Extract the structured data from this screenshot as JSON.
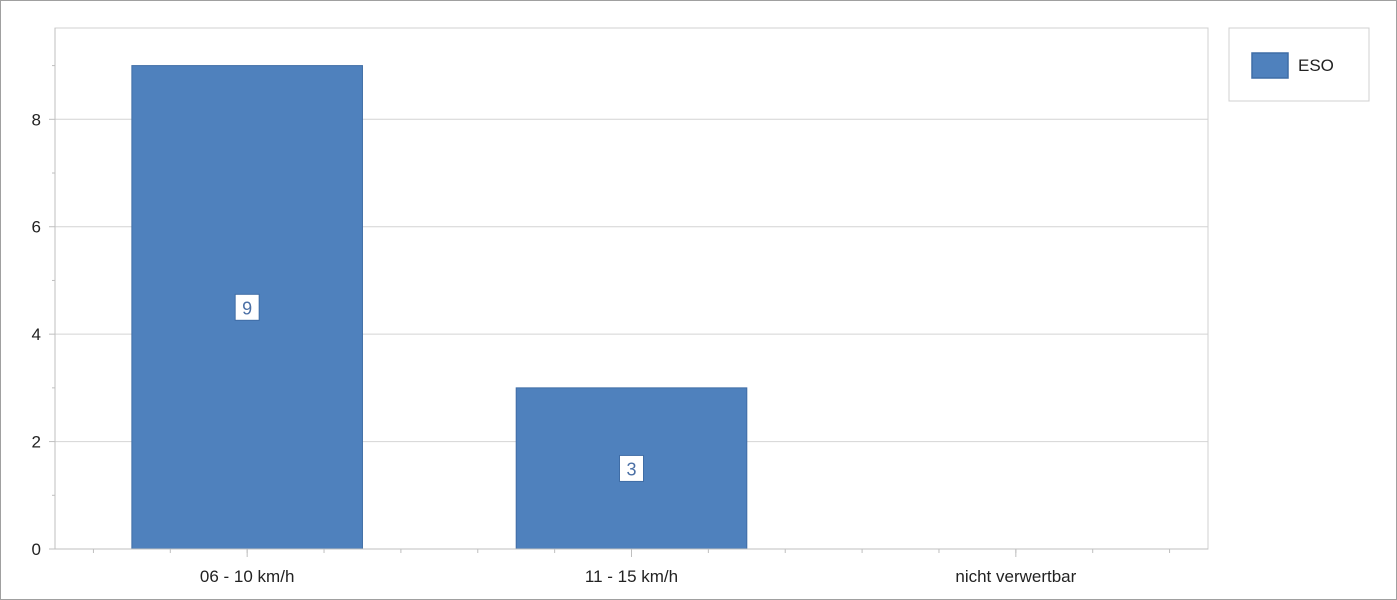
{
  "chart_data": {
    "type": "bar",
    "categories": [
      "06 - 10 km/h",
      "11 - 15 km/h",
      "nicht verwertbar"
    ],
    "series": [
      {
        "name": "ESO",
        "values": [
          9,
          3,
          0
        ]
      }
    ],
    "title": "",
    "xlabel": "",
    "ylabel": "",
    "ylim": [
      0,
      9.7
    ],
    "yticks": [
      0,
      2,
      4,
      6,
      8
    ],
    "grid": true,
    "legend": "right",
    "data_labels": true,
    "colors": {
      "bar": "#4f81bd",
      "bar_border": "#3f6da6",
      "grid": "#d4d4d4",
      "axis": "#bfbfbf",
      "frame": "#a0a0a0"
    }
  }
}
